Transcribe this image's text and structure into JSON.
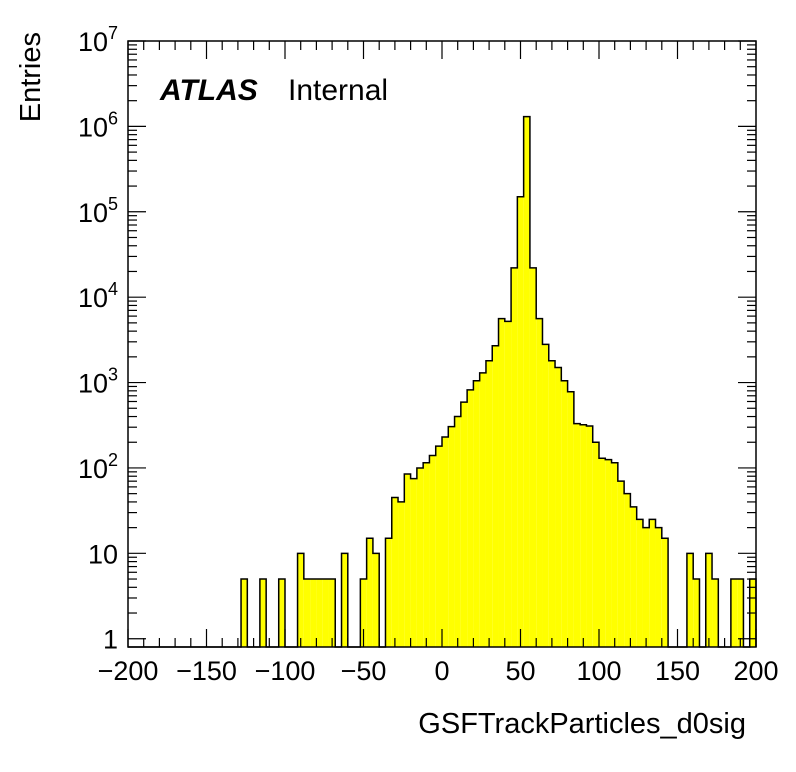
{
  "chart_data": {
    "type": "bar",
    "title": "",
    "xlabel": "GSFTrackParticles_d0sig",
    "ylabel": "Entries",
    "label": {
      "experiment": "ATLAS",
      "status": "Internal"
    },
    "xlim": [
      -200,
      200
    ],
    "ylim": [
      0.8,
      10000000
    ],
    "yscale": "log",
    "grid": false,
    "fill_color": "#ffff00",
    "line_color": "#000000",
    "x_ticks": [
      "−200",
      "−150",
      "−100",
      "−50",
      "0",
      "50",
      "100",
      "150",
      "200"
    ],
    "x_tick_values": [
      -200,
      -150,
      -100,
      -50,
      0,
      50,
      100,
      150,
      200
    ],
    "y_ticks": [
      {
        "value": 1,
        "base": "1",
        "exp": ""
      },
      {
        "value": 10,
        "base": "10",
        "exp": ""
      },
      {
        "value": 100,
        "base": "10",
        "exp": "2"
      },
      {
        "value": 1000,
        "base": "10",
        "exp": "3"
      },
      {
        "value": 10000,
        "base": "10",
        "exp": "4"
      },
      {
        "value": 100000,
        "base": "10",
        "exp": "5"
      },
      {
        "value": 1000000,
        "base": "10",
        "exp": "6"
      },
      {
        "value": 10000000,
        "base": "10",
        "exp": "7"
      }
    ],
    "bins": {
      "start": -200,
      "width": 4,
      "count": 100
    },
    "values": [
      0,
      0,
      0,
      0,
      0,
      0,
      0,
      0,
      0,
      0,
      0,
      0,
      0,
      0,
      0,
      0,
      0,
      0,
      5,
      0,
      0,
      5,
      0,
      0,
      5,
      0,
      0,
      10,
      5,
      5,
      5,
      5,
      5,
      0,
      10,
      0,
      0,
      5,
      15,
      10,
      0,
      15,
      45,
      40,
      85,
      75,
      100,
      115,
      140,
      180,
      230,
      305,
      400,
      590,
      820,
      1050,
      1300,
      1800,
      2700,
      5600,
      5200,
      22000,
      150000,
      1300000,
      22000,
      5600,
      2800,
      1800,
      1500,
      1050,
      780,
      330,
      320,
      310,
      200,
      130,
      125,
      115,
      70,
      50,
      35,
      25,
      20,
      25,
      20,
      15,
      0,
      0,
      0,
      10,
      5,
      0,
      10,
      5,
      0,
      0,
      5,
      5,
      0,
      5
    ]
  }
}
